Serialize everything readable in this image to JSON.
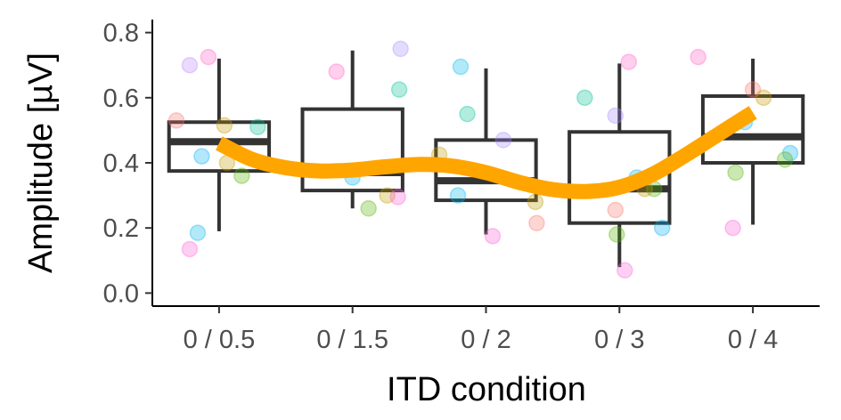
{
  "chart_data": {
    "type": "box",
    "xlabel": "ITD condition",
    "ylabel": "Amplitude [µV]",
    "categories": [
      "0 / 0.5",
      "0 / 1.5",
      "0 / 2",
      "0 / 3",
      "0 / 4"
    ],
    "ylim": [
      -0.04,
      0.84
    ],
    "yticks": [
      0.0,
      0.2,
      0.4,
      0.6,
      0.8
    ],
    "ytick_labels": [
      "0.0",
      "0.2",
      "0.4",
      "0.6",
      "0.8"
    ],
    "grid": false,
    "legend": "none",
    "boxes": [
      {
        "category": "0 / 0.5",
        "whisker_low": 0.19,
        "q1": 0.375,
        "median": 0.465,
        "q3": 0.525,
        "whisker_high": 0.72
      },
      {
        "category": "0 / 1.5",
        "whisker_low": 0.26,
        "q1": 0.315,
        "median": 0.37,
        "q3": 0.565,
        "whisker_high": 0.745
      },
      {
        "category": "0 / 2",
        "whisker_low": 0.18,
        "q1": 0.285,
        "median": 0.345,
        "q3": 0.47,
        "whisker_high": 0.69
      },
      {
        "category": "0 / 3",
        "whisker_low": 0.08,
        "q1": 0.215,
        "median": 0.32,
        "q3": 0.495,
        "whisker_high": 0.705
      },
      {
        "category": "0 / 4",
        "whisker_low": 0.21,
        "q1": 0.4,
        "median": 0.48,
        "q3": 0.605,
        "whisker_high": 0.72
      }
    ],
    "points": [
      {
        "category": "0 / 0.5",
        "offset": -0.32,
        "y": 0.53,
        "color": "#F8766D"
      },
      {
        "category": "0 / 0.5",
        "offset": -0.22,
        "y": 0.7,
        "color": "#B983FF"
      },
      {
        "category": "0 / 0.5",
        "offset": -0.08,
        "y": 0.725,
        "color": "#FF61C3"
      },
      {
        "category": "0 / 0.5",
        "offset": -0.13,
        "y": 0.42,
        "color": "#00B0F6"
      },
      {
        "category": "0 / 0.5",
        "offset": 0.04,
        "y": 0.515,
        "color": "#C49A00"
      },
      {
        "category": "0 / 0.5",
        "offset": 0.06,
        "y": 0.4,
        "color": "#C49A00"
      },
      {
        "category": "0 / 0.5",
        "offset": 0.17,
        "y": 0.36,
        "color": "#53B400"
      },
      {
        "category": "0 / 0.5",
        "offset": 0.29,
        "y": 0.51,
        "color": "#00C094"
      },
      {
        "category": "0 / 0.5",
        "offset": -0.16,
        "y": 0.185,
        "color": "#00B6EB"
      },
      {
        "category": "0 / 0.5",
        "offset": -0.22,
        "y": 0.135,
        "color": "#FB61D7"
      },
      {
        "category": "0 / 1.5",
        "offset": -0.12,
        "y": 0.68,
        "color": "#FF61C3"
      },
      {
        "category": "0 / 1.5",
        "offset": 0.36,
        "y": 0.75,
        "color": "#A58AFF"
      },
      {
        "category": "0 / 1.5",
        "offset": 0.35,
        "y": 0.625,
        "color": "#00C094"
      },
      {
        "category": "0 / 1.5",
        "offset": 0.0,
        "y": 0.355,
        "color": "#00B6EB"
      },
      {
        "category": "0 / 1.5",
        "offset": 0.12,
        "y": 0.26,
        "color": "#53B400"
      },
      {
        "category": "0 / 1.5",
        "offset": 0.26,
        "y": 0.3,
        "color": "#C49A00"
      },
      {
        "category": "0 / 1.5",
        "offset": 0.34,
        "y": 0.295,
        "color": "#FB61D7"
      },
      {
        "category": "0 / 2",
        "offset": -0.19,
        "y": 0.695,
        "color": "#00B6EB"
      },
      {
        "category": "0 / 2",
        "offset": -0.14,
        "y": 0.55,
        "color": "#00C094"
      },
      {
        "category": "0 / 2",
        "offset": 0.13,
        "y": 0.47,
        "color": "#A58AFF"
      },
      {
        "category": "0 / 2",
        "offset": -0.35,
        "y": 0.425,
        "color": "#C49A00"
      },
      {
        "category": "0 / 2",
        "offset": -0.21,
        "y": 0.3,
        "color": "#00B6EB"
      },
      {
        "category": "0 / 2",
        "offset": 0.37,
        "y": 0.28,
        "color": "#C49A00"
      },
      {
        "category": "0 / 2",
        "offset": 0.38,
        "y": 0.215,
        "color": "#F8766D"
      },
      {
        "category": "0 / 2",
        "offset": 0.05,
        "y": 0.175,
        "color": "#FB61D7"
      },
      {
        "category": "0 / 3",
        "offset": -0.26,
        "y": 0.6,
        "color": "#00C094"
      },
      {
        "category": "0 / 3",
        "offset": -0.03,
        "y": 0.545,
        "color": "#A58AFF"
      },
      {
        "category": "0 / 3",
        "offset": 0.07,
        "y": 0.71,
        "color": "#FF61C3"
      },
      {
        "category": "0 / 3",
        "offset": 0.13,
        "y": 0.355,
        "color": "#00B6EB"
      },
      {
        "category": "0 / 3",
        "offset": 0.26,
        "y": 0.32,
        "color": "#53B400"
      },
      {
        "category": "0 / 3",
        "offset": 0.19,
        "y": 0.32,
        "color": "#C49A00"
      },
      {
        "category": "0 / 3",
        "offset": -0.03,
        "y": 0.255,
        "color": "#F8766D"
      },
      {
        "category": "0 / 3",
        "offset": 0.32,
        "y": 0.2,
        "color": "#00B0F6"
      },
      {
        "category": "0 / 3",
        "offset": -0.02,
        "y": 0.18,
        "color": "#53B400"
      },
      {
        "category": "0 / 3",
        "offset": 0.04,
        "y": 0.07,
        "color": "#FB61D7"
      },
      {
        "category": "0 / 4",
        "offset": -0.41,
        "y": 0.725,
        "color": "#FF61C3"
      },
      {
        "category": "0 / 4",
        "offset": 0.0,
        "y": 0.625,
        "color": "#F8766D"
      },
      {
        "category": "0 / 4",
        "offset": 0.08,
        "y": 0.6,
        "color": "#C49A00"
      },
      {
        "category": "0 / 4",
        "offset": -0.06,
        "y": 0.525,
        "color": "#00B6EB"
      },
      {
        "category": "0 / 4",
        "offset": 0.28,
        "y": 0.43,
        "color": "#00B0F6"
      },
      {
        "category": "0 / 4",
        "offset": 0.24,
        "y": 0.41,
        "color": "#53B400"
      },
      {
        "category": "0 / 4",
        "offset": -0.13,
        "y": 0.37,
        "color": "#53B400"
      },
      {
        "category": "0 / 4",
        "offset": -0.15,
        "y": 0.2,
        "color": "#FB61D7"
      }
    ],
    "trend_line": {
      "color": "#FFA500",
      "x": [
        1,
        1.25,
        1.5,
        1.75,
        2,
        2.25,
        2.5,
        2.75,
        3,
        3.25,
        3.5,
        3.75,
        4,
        4.25,
        4.5,
        4.75,
        5
      ],
      "y": [
        0.46,
        0.41,
        0.385,
        0.375,
        0.378,
        0.388,
        0.395,
        0.39,
        0.37,
        0.34,
        0.318,
        0.312,
        0.325,
        0.365,
        0.425,
        0.49,
        0.555
      ]
    }
  }
}
